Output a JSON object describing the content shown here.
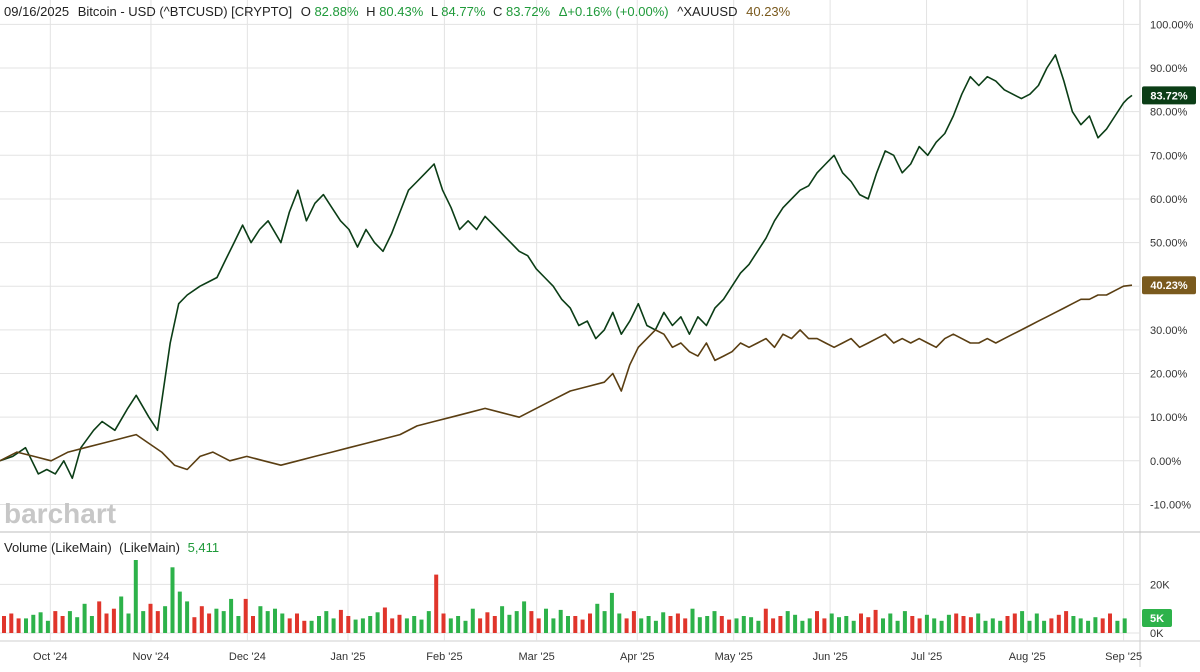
{
  "header": {
    "date": "09/16/2025",
    "title": "Bitcoin - USD (^BTCUSD) [CRYPTO]",
    "o_label": "O",
    "o_value": "82.88%",
    "h_label": "H",
    "h_value": "80.43%",
    "l_label": "L",
    "l_value": "84.77%",
    "c_label": "C",
    "c_value": "83.72%",
    "change": "Δ+0.16% (+0.00%)",
    "compare_symbol": "^XAUUSD",
    "compare_value": "40.23%"
  },
  "watermark": "barchart",
  "volume_header": {
    "label": "Volume (LikeMain)",
    "sub_label": "(LikeMain)",
    "value": "5,411"
  },
  "colors": {
    "btc": "#0b3d16",
    "gold": "#5a3e12",
    "gold_badge": "#7a5a1e",
    "up": "#2db24a",
    "down": "#e0352b",
    "grid": "#e3e3e3",
    "header_green": "#1f9a3a"
  },
  "chart_data": [
    {
      "type": "line",
      "x_labels": [
        "Oct '24",
        "Nov '24",
        "Dec '24",
        "Jan '25",
        "Feb '25",
        "Mar '25",
        "Apr '25",
        "May '25",
        "Jun '25",
        "Jul '25",
        "Aug '25",
        "Sep '25"
      ],
      "y_ticks": [
        "100.00%",
        "90.00%",
        "80.00%",
        "70.00%",
        "60.00%",
        "50.00%",
        "40.00%",
        "30.00%",
        "20.00%",
        "10.00%",
        "0.00%",
        "-10.00%"
      ],
      "ylim": [
        -11.5,
        101
      ],
      "series": [
        {
          "name": "Bitcoin - USD (^BTCUSD)",
          "last_label": "83.72%",
          "last": 83.72,
          "points": [
            [
              0,
              0
            ],
            [
              3,
              1
            ],
            [
              6,
              3
            ],
            [
              9,
              -3
            ],
            [
              11,
              -2
            ],
            [
              13,
              -3
            ],
            [
              15,
              0
            ],
            [
              17,
              -4
            ],
            [
              19,
              3
            ],
            [
              22,
              7
            ],
            [
              24,
              9
            ],
            [
              27,
              7
            ],
            [
              30,
              12
            ],
            [
              32,
              15
            ],
            [
              35,
              10
            ],
            [
              37,
              7
            ],
            [
              40,
              27
            ],
            [
              42,
              36
            ],
            [
              44,
              38
            ],
            [
              47,
              40
            ],
            [
              49,
              41
            ],
            [
              51,
              42
            ],
            [
              53,
              46
            ],
            [
              55,
              50
            ],
            [
              57,
              54
            ],
            [
              59,
              50
            ],
            [
              61,
              53
            ],
            [
              63,
              55
            ],
            [
              66,
              50
            ],
            [
              68,
              57
            ],
            [
              70,
              62
            ],
            [
              72,
              55
            ],
            [
              74,
              59
            ],
            [
              76,
              61
            ],
            [
              78,
              58
            ],
            [
              80,
              55
            ],
            [
              82,
              53
            ],
            [
              84,
              49
            ],
            [
              86,
              53
            ],
            [
              88,
              50
            ],
            [
              90,
              48
            ],
            [
              92,
              52
            ],
            [
              94,
              57
            ],
            [
              96,
              62
            ],
            [
              98,
              64
            ],
            [
              100,
              66
            ],
            [
              102,
              68
            ],
            [
              104,
              62
            ],
            [
              106,
              58
            ],
            [
              108,
              53
            ],
            [
              110,
              55
            ],
            [
              112,
              53
            ],
            [
              114,
              56
            ],
            [
              116,
              54
            ],
            [
              118,
              52
            ],
            [
              120,
              50
            ],
            [
              122,
              48
            ],
            [
              124,
              47
            ],
            [
              126,
              44
            ],
            [
              128,
              42
            ],
            [
              130,
              40
            ],
            [
              132,
              37
            ],
            [
              134,
              35
            ],
            [
              136,
              31
            ],
            [
              138,
              32
            ],
            [
              140,
              28
            ],
            [
              142,
              30
            ],
            [
              144,
              34
            ],
            [
              146,
              29
            ],
            [
              148,
              32
            ],
            [
              150,
              36
            ],
            [
              152,
              31
            ],
            [
              154,
              30
            ],
            [
              156,
              34
            ],
            [
              158,
              31
            ],
            [
              160,
              33
            ],
            [
              162,
              29
            ],
            [
              164,
              33
            ],
            [
              166,
              31
            ],
            [
              168,
              35
            ],
            [
              170,
              37
            ],
            [
              172,
              40
            ],
            [
              174,
              43
            ],
            [
              176,
              45
            ],
            [
              178,
              48
            ],
            [
              180,
              51
            ],
            [
              182,
              55
            ],
            [
              184,
              58
            ],
            [
              186,
              60
            ],
            [
              188,
              62
            ],
            [
              190,
              63
            ],
            [
              192,
              66
            ],
            [
              194,
              68
            ],
            [
              196,
              70
            ],
            [
              198,
              66
            ],
            [
              200,
              64
            ],
            [
              202,
              61
            ],
            [
              204,
              60
            ],
            [
              206,
              66
            ],
            [
              208,
              71
            ],
            [
              210,
              70
            ],
            [
              212,
              66
            ],
            [
              214,
              68
            ],
            [
              216,
              72
            ],
            [
              218,
              70
            ],
            [
              220,
              73
            ],
            [
              222,
              75
            ],
            [
              224,
              79
            ],
            [
              226,
              84
            ],
            [
              228,
              88
            ],
            [
              230,
              86
            ],
            [
              232,
              88
            ],
            [
              234,
              87
            ],
            [
              236,
              85
            ],
            [
              238,
              84
            ],
            [
              240,
              83
            ],
            [
              242,
              84
            ],
            [
              244,
              86
            ],
            [
              246,
              90
            ],
            [
              248,
              93
            ],
            [
              250,
              87
            ],
            [
              252,
              80
            ],
            [
              254,
              77
            ],
            [
              256,
              79
            ],
            [
              258,
              74
            ],
            [
              260,
              76
            ],
            [
              262,
              79
            ],
            [
              264,
              82
            ],
            [
              265,
              83
            ],
            [
              266,
              83.72
            ]
          ]
        },
        {
          "name": "^XAUUSD",
          "last_label": "40.23%",
          "last": 40.23,
          "points": [
            [
              0,
              0
            ],
            [
              4,
              2
            ],
            [
              8,
              1
            ],
            [
              12,
              0
            ],
            [
              16,
              2
            ],
            [
              20,
              3
            ],
            [
              24,
              4
            ],
            [
              28,
              5
            ],
            [
              32,
              6
            ],
            [
              35,
              4
            ],
            [
              38,
              2
            ],
            [
              41,
              -1
            ],
            [
              44,
              -2
            ],
            [
              47,
              1
            ],
            [
              50,
              2
            ],
            [
              54,
              0
            ],
            [
              58,
              1
            ],
            [
              62,
              0
            ],
            [
              66,
              -1
            ],
            [
              70,
              0
            ],
            [
              74,
              1
            ],
            [
              78,
              2
            ],
            [
              82,
              3
            ],
            [
              86,
              4
            ],
            [
              90,
              5
            ],
            [
              94,
              6
            ],
            [
              98,
              8
            ],
            [
              102,
              9
            ],
            [
              106,
              10
            ],
            [
              110,
              11
            ],
            [
              114,
              12
            ],
            [
              118,
              11
            ],
            [
              122,
              10
            ],
            [
              126,
              12
            ],
            [
              130,
              14
            ],
            [
              134,
              16
            ],
            [
              138,
              17
            ],
            [
              142,
              18
            ],
            [
              144,
              20
            ],
            [
              146,
              16
            ],
            [
              148,
              22
            ],
            [
              150,
              26
            ],
            [
              152,
              28
            ],
            [
              154,
              30
            ],
            [
              156,
              29
            ],
            [
              158,
              26
            ],
            [
              160,
              27
            ],
            [
              162,
              25
            ],
            [
              164,
              24
            ],
            [
              166,
              27
            ],
            [
              168,
              23
            ],
            [
              170,
              24
            ],
            [
              172,
              25
            ],
            [
              174,
              27
            ],
            [
              176,
              26
            ],
            [
              178,
              27
            ],
            [
              180,
              28
            ],
            [
              182,
              26
            ],
            [
              184,
              29
            ],
            [
              186,
              28
            ],
            [
              188,
              30
            ],
            [
              190,
              28
            ],
            [
              192,
              28
            ],
            [
              194,
              27
            ],
            [
              196,
              26
            ],
            [
              198,
              27
            ],
            [
              200,
              28
            ],
            [
              202,
              26
            ],
            [
              204,
              27
            ],
            [
              206,
              28
            ],
            [
              208,
              29
            ],
            [
              210,
              27
            ],
            [
              212,
              28
            ],
            [
              214,
              27
            ],
            [
              216,
              28
            ],
            [
              218,
              27
            ],
            [
              220,
              26
            ],
            [
              222,
              28
            ],
            [
              224,
              29
            ],
            [
              226,
              28
            ],
            [
              228,
              27
            ],
            [
              230,
              27
            ],
            [
              232,
              28
            ],
            [
              234,
              27
            ],
            [
              236,
              28
            ],
            [
              238,
              29
            ],
            [
              240,
              30
            ],
            [
              242,
              31
            ],
            [
              244,
              32
            ],
            [
              246,
              33
            ],
            [
              248,
              34
            ],
            [
              250,
              35
            ],
            [
              252,
              36
            ],
            [
              254,
              37
            ],
            [
              256,
              37
            ],
            [
              258,
              38
            ],
            [
              260,
              38
            ],
            [
              262,
              39
            ],
            [
              264,
              40
            ],
            [
              266,
              40.23
            ]
          ]
        }
      ]
    },
    {
      "type": "bar",
      "y_ticks": [
        "20K",
        "0K"
      ],
      "ylim": [
        0,
        30000
      ],
      "last_label": "5K",
      "last": 5411,
      "up_color_values": [
        6000,
        7500,
        8500,
        5000,
        9000,
        6500,
        12000,
        7000,
        15000,
        8000,
        30000,
        9000,
        11000,
        27000,
        17000,
        13000,
        10000,
        9000,
        14000,
        7000,
        11000,
        9000,
        10000,
        8000,
        5000,
        7000,
        9000,
        6000,
        5500,
        6000,
        7000,
        8500,
        6000,
        7000,
        5500,
        9000,
        6000,
        7000,
        5000,
        10000,
        11000,
        7500,
        9000,
        13000,
        10000,
        6000,
        9500,
        7000,
        12000,
        9000,
        16500,
        8000,
        6000,
        7000,
        5000,
        8500,
        10000,
        6500,
        7000,
        9000,
        6000,
        7000,
        6500,
        5000,
        9000,
        7500,
        5000,
        6000,
        8000,
        6500,
        7000,
        5000,
        6000,
        8000,
        5000,
        9000,
        7500,
        6000,
        5000,
        7500,
        8000,
        5000,
        6000,
        5000,
        9000,
        5000,
        8000,
        5000,
        7000,
        6000,
        5000,
        6500,
        5000,
        6000
      ],
      "down_color_values": [
        7000,
        8000,
        6000,
        9000,
        7000,
        13000,
        8000,
        10000,
        12000,
        9000,
        6500,
        11000,
        8000,
        14000,
        7000,
        6000,
        8000,
        5000,
        9500,
        7000,
        10500,
        6000,
        7500,
        24000,
        8000,
        6000,
        8500,
        7000,
        9000,
        6000,
        7000,
        5500,
        8000,
        6000,
        9000,
        7000,
        8000,
        6000,
        7000,
        5500,
        10000,
        6000,
        7000,
        9000,
        6000,
        8000,
        6500,
        9500,
        7000,
        6000,
        8000,
        7000,
        6500,
        7000,
        8000,
        6000,
        7500,
        9000,
        6000,
        8000
      ]
    }
  ]
}
